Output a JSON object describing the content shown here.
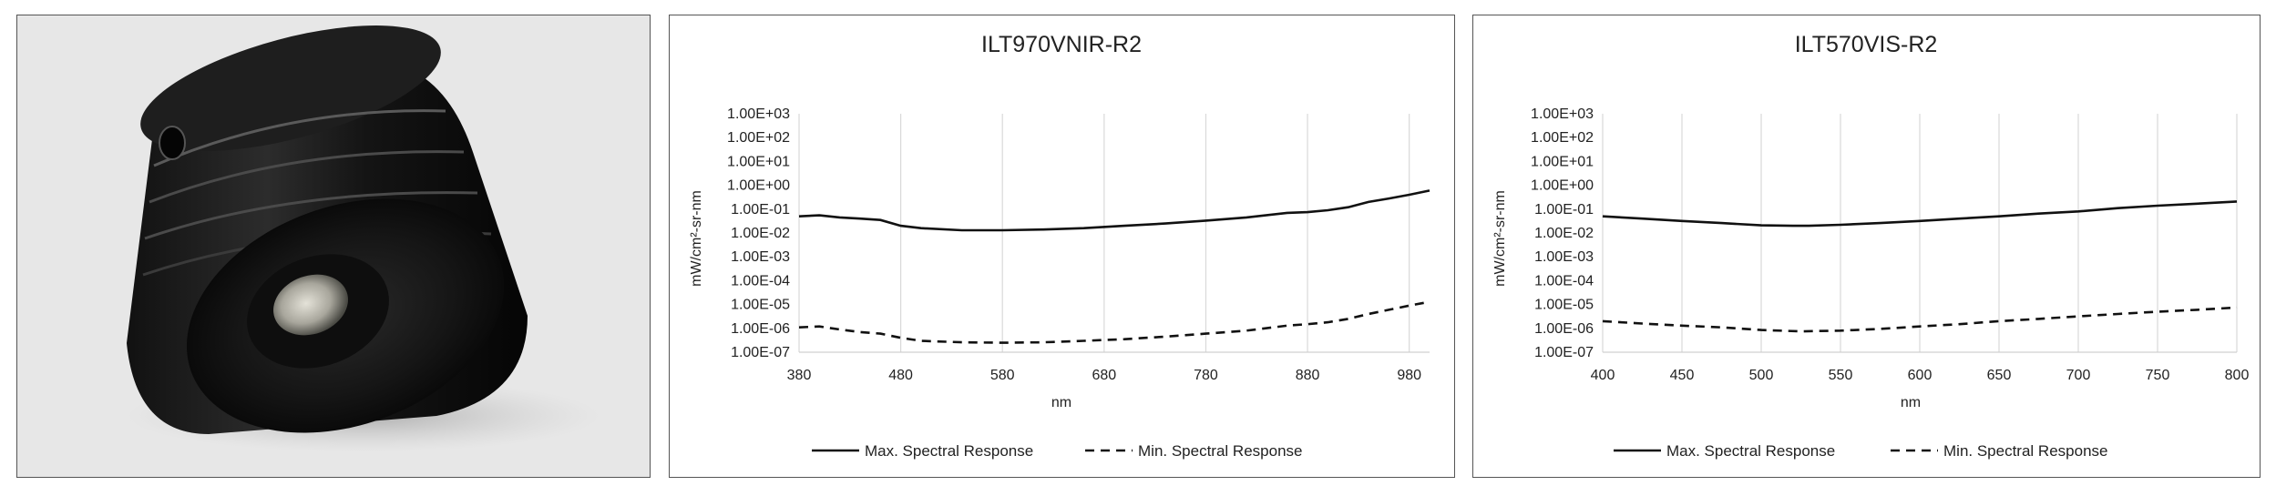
{
  "product_image": {
    "icon": "cylindrical-black-optic-icon"
  },
  "chart_data": [
    {
      "type": "line",
      "title": "ILT970VNIR-R2",
      "xlabel": "nm",
      "ylabel": "mW/cm²-sr-nm",
      "xlim": [
        380,
        1000
      ],
      "xticks": [
        380,
        480,
        580,
        680,
        780,
        880,
        980
      ],
      "ylim": [
        1e-07,
        1000
      ],
      "yscale": "log",
      "yticks": [
        "1.00E-07",
        "1.00E-06",
        "1.00E-05",
        "1.00E-04",
        "1.00E-03",
        "1.00E-02",
        "1.00E-01",
        "1.00E+00",
        "1.00E+01",
        "1.00E+02",
        "1.00E+03"
      ],
      "grid": "vertical",
      "legend": "bottom",
      "series": [
        {
          "name": "Max. Spectral Response",
          "style": "solid",
          "x": [
            380,
            400,
            420,
            440,
            460,
            480,
            500,
            540,
            580,
            620,
            660,
            700,
            740,
            780,
            820,
            860,
            880,
            900,
            920,
            940,
            960,
            980,
            1000
          ],
          "y": [
            0.05,
            0.055,
            0.045,
            0.04,
            0.035,
            0.02,
            0.016,
            0.013,
            0.013,
            0.014,
            0.016,
            0.02,
            0.025,
            0.033,
            0.045,
            0.07,
            0.075,
            0.09,
            0.12,
            0.2,
            0.28,
            0.4,
            0.6
          ]
        },
        {
          "name": "Min. Spectral Response",
          "style": "dashed",
          "x": [
            380,
            400,
            420,
            440,
            460,
            480,
            500,
            540,
            580,
            620,
            660,
            700,
            740,
            780,
            820,
            860,
            880,
            900,
            920,
            940,
            960,
            980,
            1000
          ],
          "y": [
            1.1e-06,
            1.2e-06,
            9e-07,
            7e-07,
            6e-07,
            4e-07,
            3e-07,
            2.6e-07,
            2.5e-07,
            2.6e-07,
            3e-07,
            3.5e-07,
            4.5e-07,
            6e-07,
            8e-07,
            1.3e-06,
            1.5e-06,
            1.8e-06,
            2.5e-06,
            4e-06,
            6e-06,
            9e-06,
            1.3e-05
          ]
        }
      ]
    },
    {
      "type": "line",
      "title": "ILT570VIS-R2",
      "xlabel": "nm",
      "ylabel": "mW/cm²-sr-nm",
      "xlim": [
        400,
        800
      ],
      "xticks": [
        400,
        450,
        500,
        550,
        600,
        650,
        700,
        750,
        800
      ],
      "ylim": [
        1e-07,
        1000
      ],
      "yscale": "log",
      "yticks": [
        "1.00E-07",
        "1.00E-06",
        "1.00E-05",
        "1.00E-04",
        "1.00E-03",
        "1.00E-02",
        "1.00E-01",
        "1.00E+00",
        "1.00E+01",
        "1.00E+02",
        "1.00E+03"
      ],
      "grid": "vertical",
      "legend": "bottom",
      "series": [
        {
          "name": "Max. Spectral Response",
          "style": "solid",
          "x": [
            400,
            425,
            450,
            475,
            500,
            520,
            530,
            550,
            575,
            600,
            625,
            650,
            675,
            700,
            725,
            750,
            775,
            800
          ],
          "y": [
            0.05,
            0.04,
            0.032,
            0.026,
            0.021,
            0.02,
            0.02,
            0.022,
            0.026,
            0.032,
            0.04,
            0.05,
            0.065,
            0.08,
            0.11,
            0.14,
            0.17,
            0.21
          ]
        },
        {
          "name": "Min. Spectral Response",
          "style": "dashed",
          "x": [
            400,
            425,
            450,
            475,
            500,
            525,
            550,
            575,
            600,
            625,
            650,
            675,
            700,
            725,
            750,
            775,
            800
          ],
          "y": [
            2e-06,
            1.6e-06,
            1.3e-06,
            1.1e-06,
            8.5e-07,
            7.5e-07,
            8e-07,
            9.5e-07,
            1.2e-06,
            1.5e-06,
            2e-06,
            2.5e-06,
            3.2e-06,
            4e-06,
            5e-06,
            6e-06,
            7.5e-06
          ]
        }
      ]
    }
  ]
}
